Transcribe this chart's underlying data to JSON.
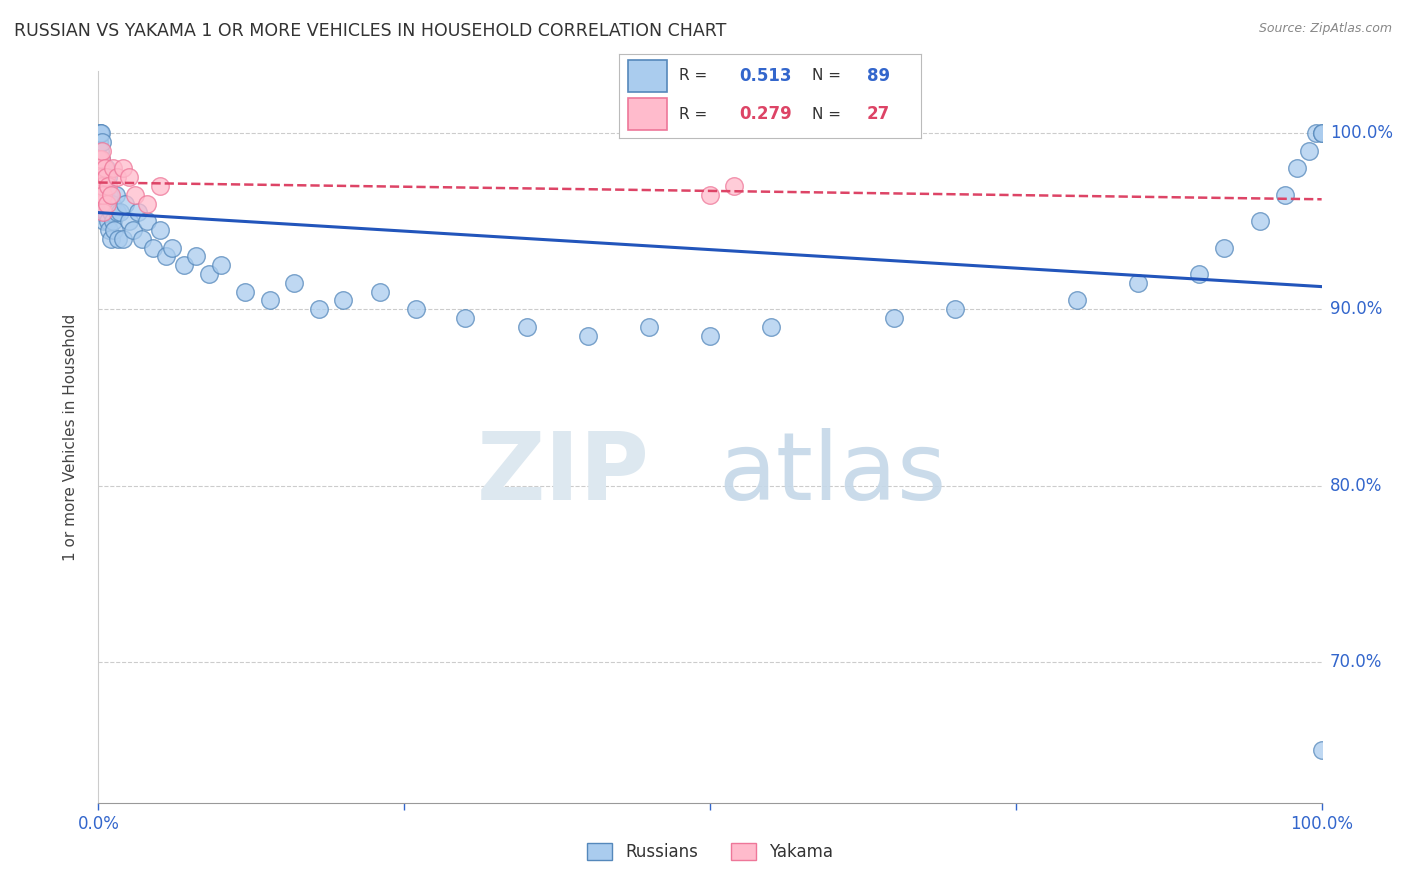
{
  "title": "RUSSIAN VS YAKAMA 1 OR MORE VEHICLES IN HOUSEHOLD CORRELATION CHART",
  "source": "Source: ZipAtlas.com",
  "ylabel": "1 or more Vehicles in Household",
  "xlim": [
    0.0,
    100.0
  ],
  "ylim": [
    62.0,
    103.5
  ],
  "yticks": [
    70.0,
    80.0,
    90.0,
    100.0
  ],
  "ytick_labels": [
    "70.0%",
    "80.0%",
    "90.0%",
    "100.0%"
  ],
  "grid_color": "#cccccc",
  "bg_color": "#ffffff",
  "russians_color_face": "#aaccee",
  "russians_color_edge": "#5588bb",
  "yakama_color_face": "#ffbbcc",
  "yakama_color_edge": "#ee7799",
  "trend_russian_color": "#2255bb",
  "trend_yakama_color": "#dd4466",
  "russians_N": 89,
  "yakama_N": 27,
  "russians_x": [
    0.05,
    0.07,
    0.08,
    0.1,
    0.1,
    0.12,
    0.13,
    0.15,
    0.15,
    0.17,
    0.18,
    0.2,
    0.2,
    0.22,
    0.25,
    0.25,
    0.28,
    0.3,
    0.3,
    0.32,
    0.35,
    0.38,
    0.4,
    0.42,
    0.45,
    0.48,
    0.5,
    0.52,
    0.55,
    0.58,
    0.6,
    0.65,
    0.7,
    0.75,
    0.8,
    0.85,
    0.9,
    0.95,
    1.0,
    1.05,
    1.1,
    1.2,
    1.3,
    1.4,
    1.5,
    1.6,
    1.8,
    2.0,
    2.2,
    2.5,
    2.8,
    3.2,
    3.6,
    4.0,
    4.5,
    5.0,
    5.5,
    6.0,
    7.0,
    8.0,
    9.0,
    10.0,
    12.0,
    14.0,
    16.0,
    18.0,
    20.0,
    23.0,
    26.0,
    30.0,
    35.0,
    40.0,
    45.0,
    50.0,
    55.0,
    65.0,
    70.0,
    80.0,
    85.0,
    90.0,
    92.0,
    95.0,
    97.0,
    98.0,
    99.0,
    99.5,
    100.0,
    100.0,
    100.0
  ],
  "russians_y": [
    95.5,
    97.0,
    99.5,
    98.5,
    100.0,
    96.5,
    99.0,
    98.0,
    100.0,
    97.5,
    96.0,
    98.5,
    100.0,
    97.0,
    96.5,
    98.0,
    99.5,
    95.5,
    97.0,
    96.0,
    98.0,
    97.5,
    96.5,
    95.0,
    97.5,
    96.0,
    95.5,
    97.0,
    96.5,
    98.0,
    97.0,
    95.5,
    96.0,
    97.5,
    95.0,
    96.5,
    94.5,
    96.0,
    94.0,
    95.5,
    96.0,
    95.0,
    94.5,
    96.5,
    95.5,
    94.0,
    95.5,
    94.0,
    96.0,
    95.0,
    94.5,
    95.5,
    94.0,
    95.0,
    93.5,
    94.5,
    93.0,
    93.5,
    92.5,
    93.0,
    92.0,
    92.5,
    91.0,
    90.5,
    91.5,
    90.0,
    90.5,
    91.0,
    90.0,
    89.5,
    89.0,
    88.5,
    89.0,
    88.5,
    89.0,
    89.5,
    90.0,
    90.5,
    91.5,
    92.0,
    93.5,
    95.0,
    96.5,
    98.0,
    99.0,
    100.0,
    100.0,
    100.0,
    65.0
  ],
  "yakama_x": [
    0.05,
    0.08,
    0.1,
    0.12,
    0.15,
    0.18,
    0.2,
    0.22,
    0.25,
    0.28,
    0.3,
    0.35,
    0.4,
    0.5,
    0.6,
    0.7,
    0.8,
    1.0,
    1.2,
    1.5,
    2.0,
    2.5,
    3.0,
    4.0,
    5.0,
    50.0,
    52.0
  ],
  "yakama_y": [
    97.5,
    98.5,
    96.5,
    97.0,
    98.0,
    97.5,
    96.0,
    98.5,
    96.5,
    99.0,
    97.0,
    95.5,
    96.5,
    98.0,
    97.5,
    96.0,
    97.0,
    96.5,
    98.0,
    97.5,
    98.0,
    97.5,
    96.5,
    96.0,
    97.0,
    96.5,
    97.0
  ]
}
